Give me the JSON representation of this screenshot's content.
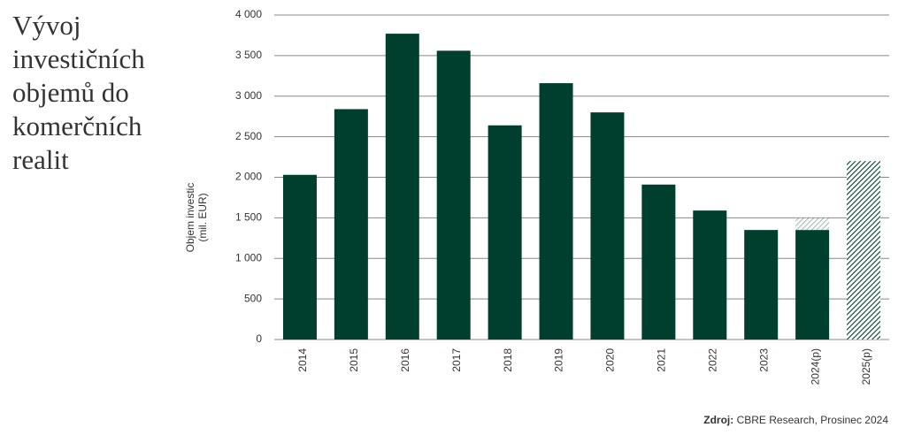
{
  "chart_data": {
    "type": "bar",
    "stacked": true,
    "title": "Vývoj investičních objemů do komerčních realit",
    "ylabel": "Objem investic (mil. EUR)",
    "source_label": "Zdroj:",
    "source": "CBRE Research, Prosinec 2024",
    "categories": [
      "2014",
      "2015",
      "2016",
      "2017",
      "2018",
      "2019",
      "2020",
      "2021",
      "2022",
      "2023",
      "2024(p)",
      "2025(p)"
    ],
    "series": [
      {
        "color": "#003f2d",
        "pattern": "solid",
        "values": [
          2030,
          2840,
          3770,
          3560,
          2640,
          3160,
          2800,
          1910,
          1590,
          1350,
          1350,
          null
        ]
      },
      {
        "color": "#003f2d",
        "pattern": "hatch",
        "values": [
          null,
          null,
          null,
          null,
          null,
          null,
          null,
          null,
          null,
          null,
          150,
          2200
        ]
      }
    ],
    "ylim": [
      0,
      4000
    ],
    "yticks": [
      0,
      500,
      {
        "value": 1000,
        "label": "1 000"
      },
      {
        "value": 1500,
        "label": "1 500"
      },
      {
        "value": 2000,
        "label": "2 000"
      },
      {
        "value": 2500,
        "label": "2 500"
      },
      {
        "value": 3000,
        "label": "3 000"
      },
      {
        "value": 3500,
        "label": "3 500"
      },
      {
        "value": 4000,
        "label": "4 000"
      }
    ],
    "grid": true
  }
}
